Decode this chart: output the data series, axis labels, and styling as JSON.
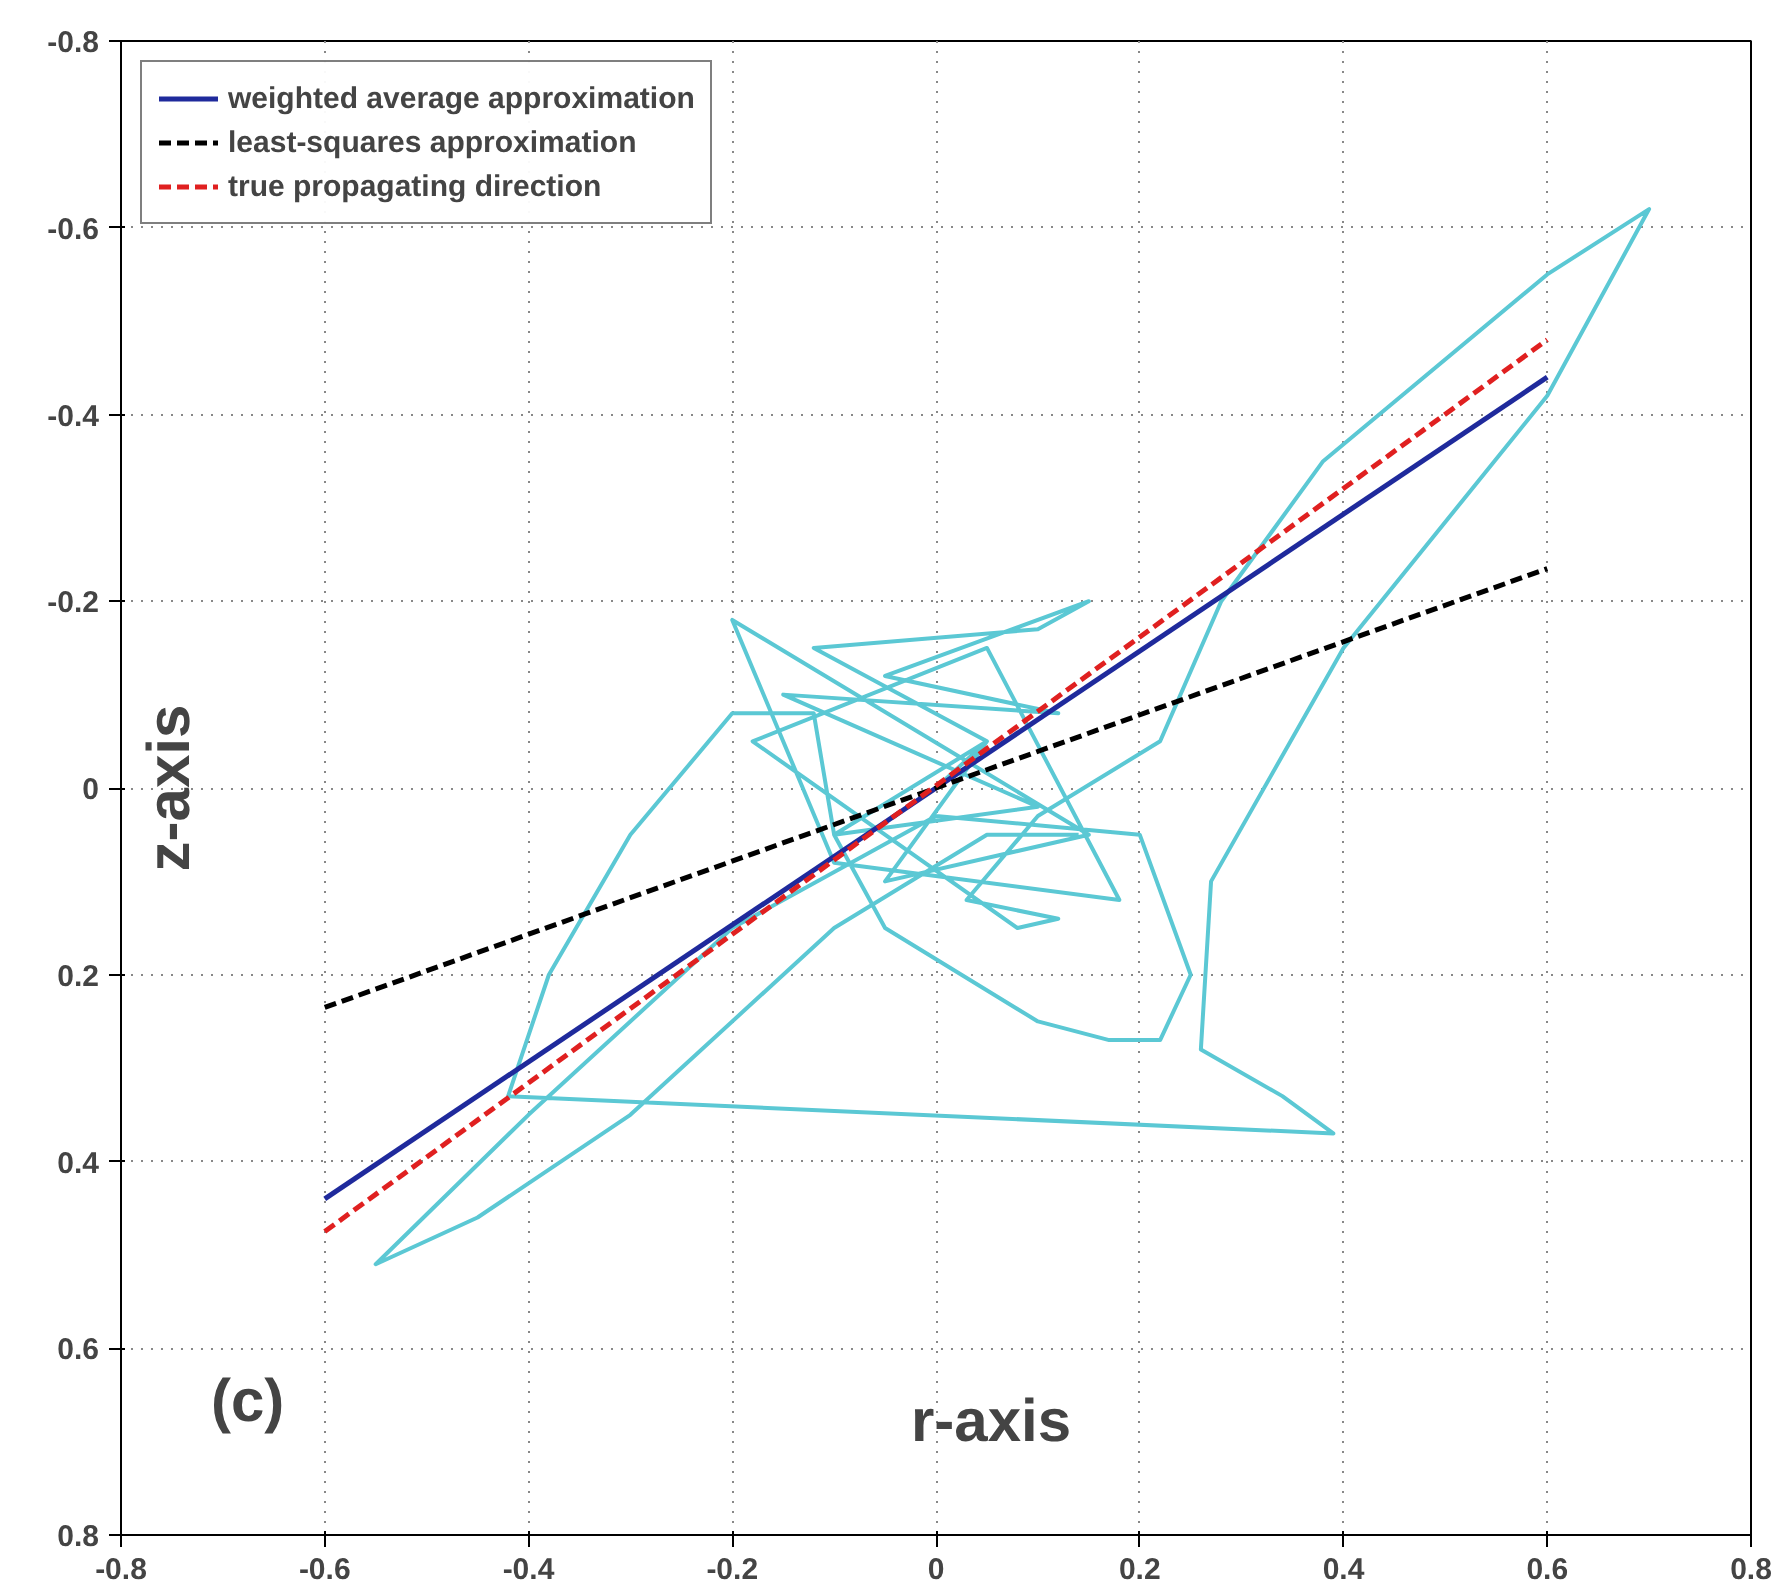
{
  "chart_data": {
    "type": "line",
    "xlabel": "r-axis",
    "ylabel": "z-axis",
    "annotations": [
      "(c)"
    ],
    "xlim": [
      -0.8,
      0.8
    ],
    "ylim": [
      0.8,
      -0.8
    ],
    "xticks": [
      -0.8,
      -0.6,
      -0.4,
      -0.2,
      0,
      0.2,
      0.4,
      0.6,
      0.8
    ],
    "yticks": [
      -0.8,
      -0.6,
      -0.4,
      -0.2,
      0,
      0.2,
      0.4,
      0.6,
      0.8
    ],
    "grid": true,
    "legend": "top left",
    "marker": "none",
    "series": [
      {
        "color": "#5bc8d4",
        "line_style": "solid",
        "x": [
          0,
          0.05,
          -0.12,
          0.1,
          0.15,
          -0.05,
          0.12,
          -0.15,
          0.1,
          -0.1,
          0.05,
          -0.05,
          0.15,
          -0.2,
          -0.1,
          0.18,
          0.05,
          -0.18,
          0.08,
          0.12,
          0.03,
          0.1,
          0.22,
          0.28,
          0.38,
          0.6,
          0.7,
          0.6,
          0.4,
          0.27,
          0.26,
          0.34,
          0.39,
          -0.42,
          -0.38,
          -0.3,
          -0.2,
          -0.12,
          -0.1,
          -0.05,
          0.1,
          0.17,
          0.22,
          0.25,
          0.2,
          0,
          -0.2,
          -0.4,
          -0.55,
          -0.45,
          -0.3,
          -0.1,
          0.05,
          0.14
        ],
        "values": [
          0,
          -0.05,
          -0.15,
          -0.17,
          -0.2,
          -0.12,
          -0.08,
          -0.1,
          0.02,
          0.05,
          -0.05,
          0.1,
          0.05,
          -0.18,
          0.08,
          0.12,
          -0.15,
          -0.05,
          0.15,
          0.14,
          0.12,
          0.03,
          -0.05,
          -0.2,
          -0.35,
          -0.55,
          -0.62,
          -0.42,
          -0.15,
          0.1,
          0.28,
          0.33,
          0.37,
          0.33,
          0.2,
          0.05,
          -0.08,
          -0.08,
          0.05,
          0.15,
          0.25,
          0.27,
          0.27,
          0.2,
          0.05,
          0.03,
          0.15,
          0.35,
          0.51,
          0.46,
          0.35,
          0.15,
          0.05,
          0.05
        ]
      },
      {
        "name": "weighted average approximation",
        "color": "#1f2a9c",
        "line_style": "solid",
        "x": [
          -0.6,
          0.6
        ],
        "values": [
          0.44,
          -0.44
        ]
      },
      {
        "name": "least-squares approximation",
        "color": "#000000",
        "line_style": "dashed",
        "x": [
          -0.6,
          0.6
        ],
        "values": [
          0.235,
          -0.235
        ]
      },
      {
        "name": "true propagating direction",
        "color": "#e02020",
        "line_style": "dashed",
        "x": [
          -0.6,
          0.6
        ],
        "values": [
          0.475,
          -0.48
        ]
      }
    ]
  }
}
